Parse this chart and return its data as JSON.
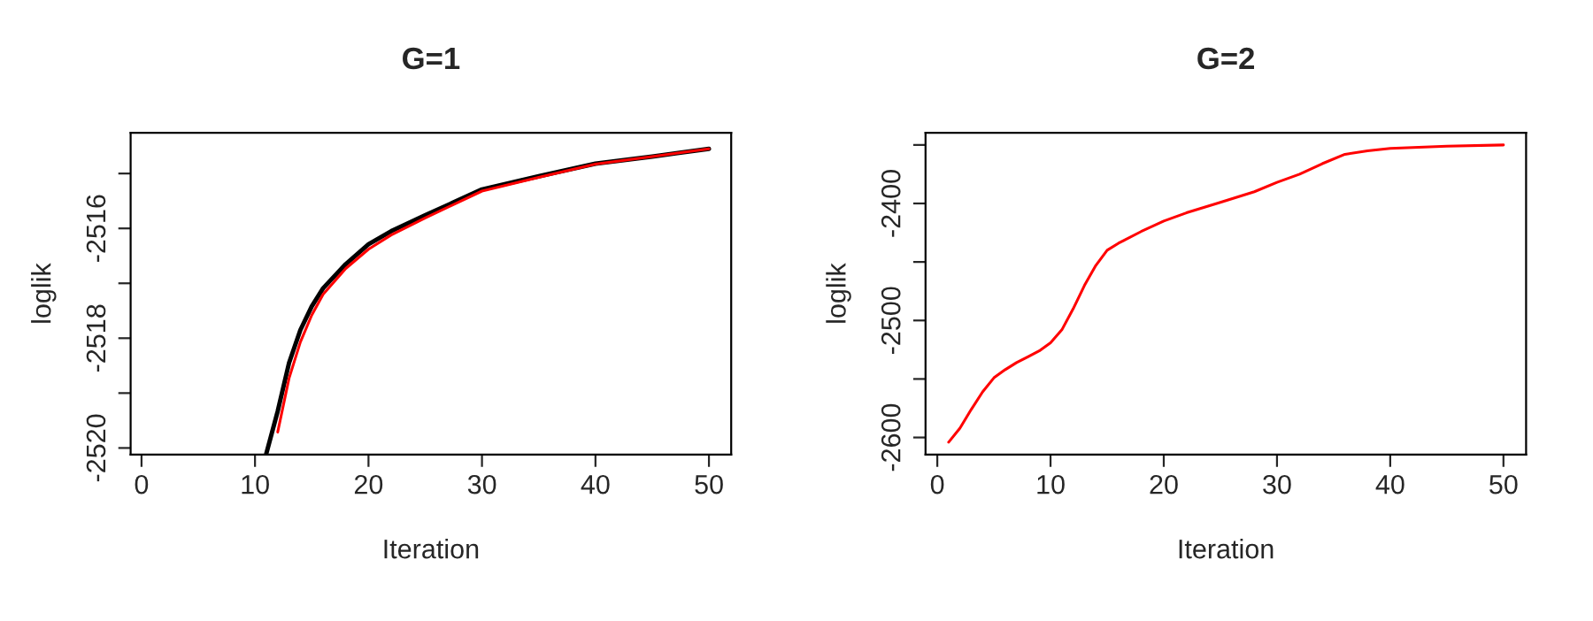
{
  "chart_data": [
    {
      "type": "line",
      "title": "G=1",
      "xlabel": "Iteration",
      "ylabel": "loglik",
      "xlim": [
        -0.96,
        51.96
      ],
      "ylim": [
        -2520.12,
        -2514.26
      ],
      "xticks": [
        0,
        10,
        20,
        30,
        40,
        50
      ],
      "yticks": [
        {
          "value": -2515,
          "label": null
        },
        -2516,
        {
          "value": -2517,
          "label": null
        },
        -2518,
        {
          "value": -2519,
          "label": null
        },
        -2520
      ],
      "grid": false,
      "marker": "none",
      "line_style": "solid",
      "series": [
        {
          "color": "#000000",
          "x": [
            11,
            12,
            13,
            14,
            15,
            16,
            18,
            20,
            22,
            25,
            30,
            35,
            40,
            45,
            50
          ],
          "values": [
            -2520.1,
            -2519.33,
            -2518.45,
            -2517.85,
            -2517.42,
            -2517.09,
            -2516.65,
            -2516.29,
            -2516.05,
            -2515.76,
            -2515.29,
            -2515.05,
            -2514.82,
            -2514.69,
            -2514.55
          ]
        },
        {
          "color": "#ff0000",
          "x": [
            12,
            13,
            14,
            15,
            16,
            18,
            20,
            22,
            25,
            30,
            35,
            40,
            45,
            50
          ],
          "values": [
            -2519.71,
            -2518.73,
            -2518.07,
            -2517.58,
            -2517.2,
            -2516.73,
            -2516.38,
            -2516.12,
            -2515.81,
            -2515.32,
            -2515.07,
            -2514.83,
            -2514.69,
            -2514.55
          ]
        }
      ]
    },
    {
      "type": "line",
      "title": "G=2",
      "xlabel": "Iteration",
      "ylabel": "loglik",
      "xlim": [
        -1.04,
        52.0
      ],
      "ylim": [
        -2614.6,
        -2339.7
      ],
      "xticks": [
        0,
        10,
        20,
        30,
        40,
        50
      ],
      "yticks": [
        {
          "value": -2350,
          "label": null
        },
        -2400,
        {
          "value": -2450,
          "label": null
        },
        -2500,
        {
          "value": -2550,
          "label": null
        },
        -2600
      ],
      "grid": false,
      "marker": "none",
      "line_style": "solid",
      "series": [
        {
          "color": "#ff0000",
          "x": [
            1,
            2,
            3,
            4,
            5,
            6,
            7,
            8,
            9,
            10,
            11,
            12,
            13,
            14,
            15,
            16,
            18,
            20,
            22,
            25,
            28,
            30,
            32,
            34,
            36,
            38,
            40,
            45,
            50
          ],
          "values": [
            -2604,
            -2592,
            -2576,
            -2561,
            -2549,
            -2542,
            -2536,
            -2531,
            -2526,
            -2519,
            -2508,
            -2490,
            -2470,
            -2453,
            -2440,
            -2434,
            -2424,
            -2415,
            -2408,
            -2399,
            -2390,
            -2382,
            -2375,
            -2366,
            -2358,
            -2355,
            -2353,
            -2351,
            -2350
          ]
        }
      ]
    }
  ]
}
